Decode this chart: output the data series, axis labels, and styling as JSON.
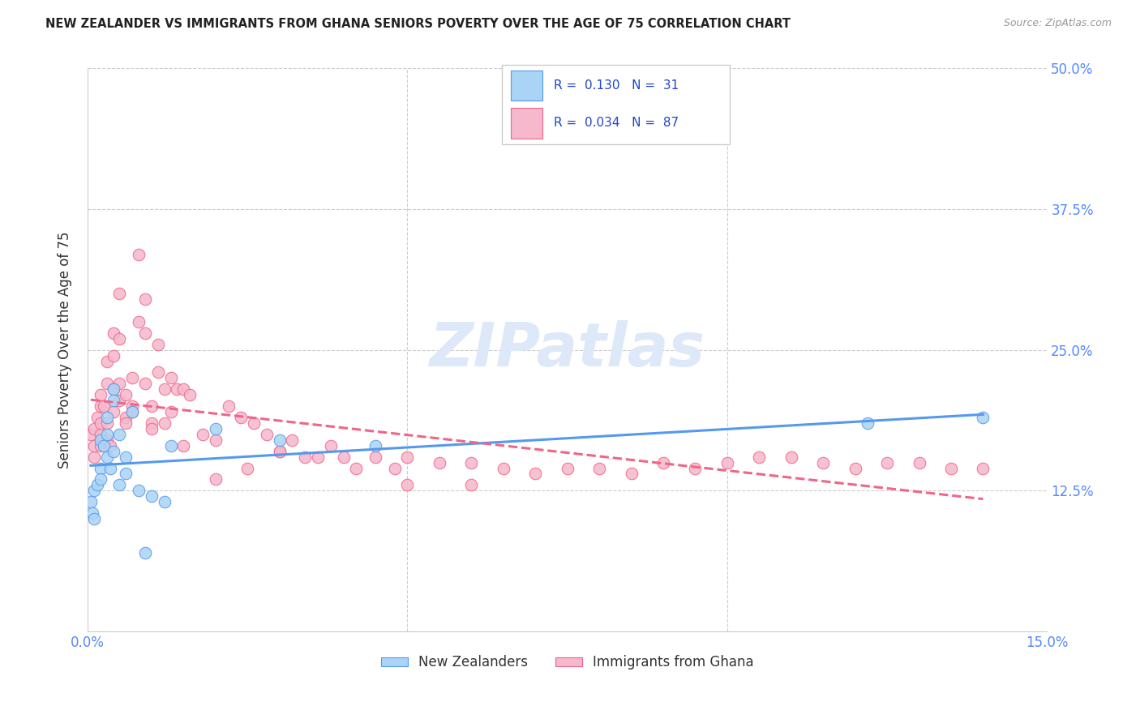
{
  "title": "NEW ZEALANDER VS IMMIGRANTS FROM GHANA SENIORS POVERTY OVER THE AGE OF 75 CORRELATION CHART",
  "source": "Source: ZipAtlas.com",
  "ylabel_label": "Seniors Poverty Over the Age of 75",
  "legend_label1": "New Zealanders",
  "legend_label2": "Immigrants from Ghana",
  "R1": "0.130",
  "N1": "31",
  "R2": "0.034",
  "N2": "87",
  "color_nz": "#aad4f5",
  "color_gh": "#f5b8cc",
  "color_nz_line": "#5599ee",
  "color_gh_line": "#ee6688",
  "title_color": "#222222",
  "axis_label_color": "#5588ff",
  "legend_text_color": "#2244cc",
  "xlim": [
    0.0,
    0.15
  ],
  "ylim": [
    0.0,
    0.5
  ],
  "nz_x": [
    0.0005,
    0.0008,
    0.001,
    0.001,
    0.0015,
    0.002,
    0.002,
    0.002,
    0.0025,
    0.003,
    0.003,
    0.003,
    0.0035,
    0.004,
    0.004,
    0.004,
    0.005,
    0.005,
    0.006,
    0.006,
    0.007,
    0.008,
    0.009,
    0.01,
    0.012,
    0.013,
    0.02,
    0.03,
    0.045,
    0.122,
    0.14
  ],
  "nz_y": [
    0.115,
    0.105,
    0.1,
    0.125,
    0.13,
    0.145,
    0.135,
    0.17,
    0.165,
    0.175,
    0.19,
    0.155,
    0.145,
    0.215,
    0.205,
    0.16,
    0.175,
    0.13,
    0.155,
    0.14,
    0.195,
    0.125,
    0.07,
    0.12,
    0.115,
    0.165,
    0.18,
    0.17,
    0.165,
    0.185,
    0.19
  ],
  "gh_x": [
    0.0005,
    0.001,
    0.001,
    0.001,
    0.0015,
    0.002,
    0.002,
    0.002,
    0.002,
    0.002,
    0.0025,
    0.003,
    0.003,
    0.003,
    0.003,
    0.0035,
    0.004,
    0.004,
    0.004,
    0.004,
    0.005,
    0.005,
    0.005,
    0.005,
    0.006,
    0.006,
    0.006,
    0.007,
    0.007,
    0.007,
    0.008,
    0.008,
    0.009,
    0.009,
    0.009,
    0.01,
    0.01,
    0.011,
    0.011,
    0.012,
    0.012,
    0.013,
    0.013,
    0.014,
    0.015,
    0.016,
    0.018,
    0.02,
    0.022,
    0.024,
    0.026,
    0.028,
    0.03,
    0.032,
    0.034,
    0.036,
    0.038,
    0.04,
    0.042,
    0.045,
    0.048,
    0.05,
    0.055,
    0.06,
    0.065,
    0.07,
    0.075,
    0.08,
    0.085,
    0.09,
    0.095,
    0.1,
    0.105,
    0.11,
    0.115,
    0.12,
    0.125,
    0.13,
    0.135,
    0.14,
    0.01,
    0.015,
    0.02,
    0.025,
    0.03,
    0.05,
    0.06
  ],
  "gh_y": [
    0.175,
    0.18,
    0.155,
    0.165,
    0.19,
    0.21,
    0.2,
    0.175,
    0.165,
    0.185,
    0.2,
    0.24,
    0.22,
    0.185,
    0.17,
    0.165,
    0.265,
    0.245,
    0.215,
    0.195,
    0.3,
    0.26,
    0.22,
    0.205,
    0.21,
    0.19,
    0.185,
    0.225,
    0.2,
    0.195,
    0.335,
    0.275,
    0.295,
    0.265,
    0.22,
    0.2,
    0.185,
    0.255,
    0.23,
    0.215,
    0.185,
    0.225,
    0.195,
    0.215,
    0.215,
    0.21,
    0.175,
    0.17,
    0.2,
    0.19,
    0.185,
    0.175,
    0.16,
    0.17,
    0.155,
    0.155,
    0.165,
    0.155,
    0.145,
    0.155,
    0.145,
    0.155,
    0.15,
    0.15,
    0.145,
    0.14,
    0.145,
    0.145,
    0.14,
    0.15,
    0.145,
    0.15,
    0.155,
    0.155,
    0.15,
    0.145,
    0.15,
    0.15,
    0.145,
    0.145,
    0.18,
    0.165,
    0.135,
    0.145,
    0.16,
    0.13,
    0.13
  ]
}
